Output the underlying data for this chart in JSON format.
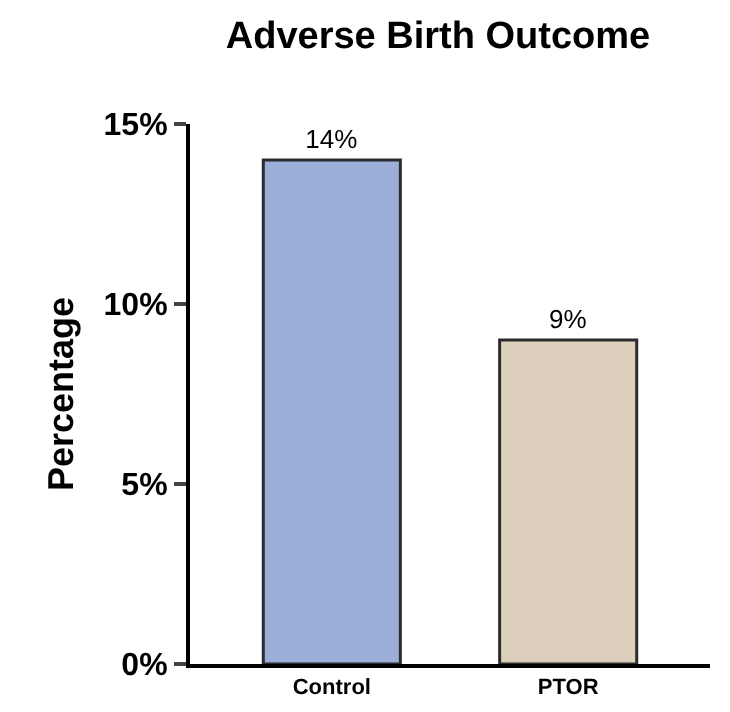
{
  "chart_data": {
    "type": "bar",
    "title": "Adverse Birth Outcome",
    "ylabel": "Percentage",
    "categories": [
      "Control",
      "PTOR"
    ],
    "values": [
      14,
      9
    ],
    "colors": [
      "#9aaed8",
      "#dcd0bc"
    ],
    "value_labels": [
      "14%",
      "9%"
    ],
    "ylim": [
      0,
      15
    ],
    "yticks": [
      {
        "value": 0,
        "label": "0%"
      },
      {
        "value": 5,
        "label": "5%"
      },
      {
        "value": 10,
        "label": "10%"
      },
      {
        "value": 15,
        "label": "15%"
      }
    ],
    "grid": false
  }
}
